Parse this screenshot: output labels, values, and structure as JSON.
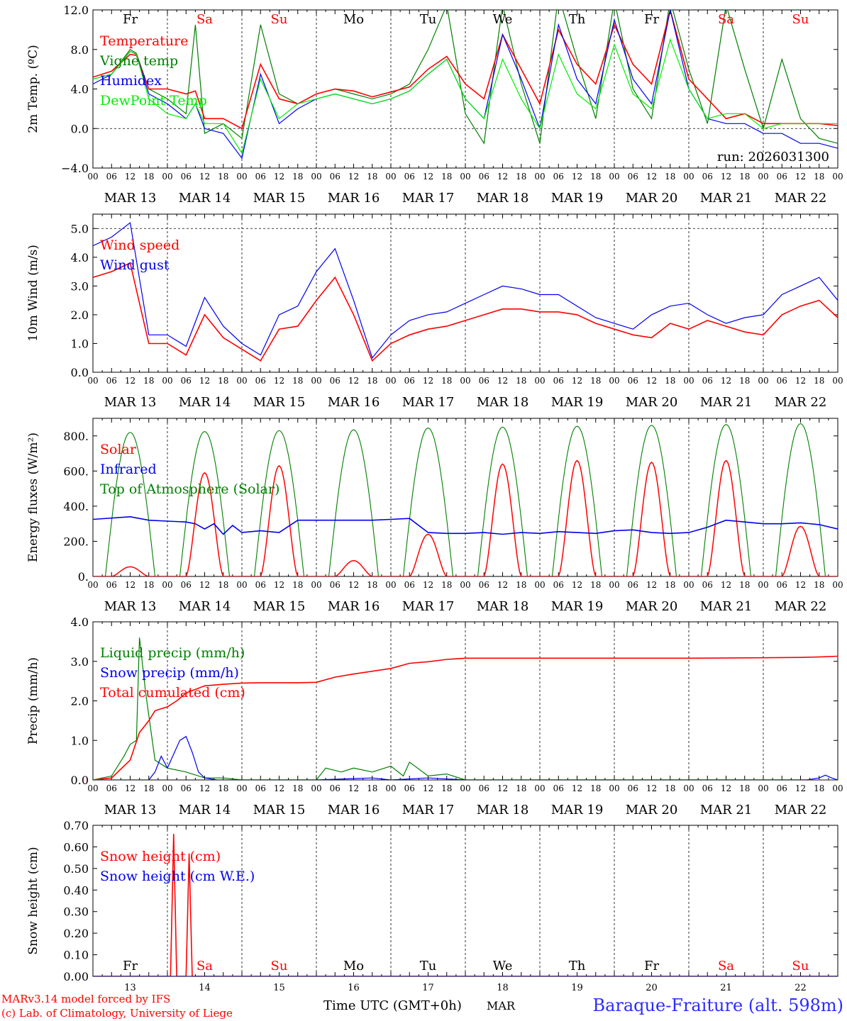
{
  "footer": {
    "credit_line1": "MARv3.14 model forced by IFS",
    "credit_line2": "(c) Lab. of Climatology, University of Liege",
    "xlabel": "Time UTC (GMT+0h)",
    "month": "MAR",
    "station": "Baraque-Fraiture (alt. 598m)"
  },
  "days": [
    "Fr",
    "Sa",
    "Su",
    "Mo",
    "Tu",
    "We",
    "Th",
    "Fr",
    "Sa",
    "Su"
  ],
  "day_colors": [
    "#000000",
    "#ff0000",
    "#ff0000",
    "#000000",
    "#000000",
    "#000000",
    "#000000",
    "#000000",
    "#ff0000",
    "#ff0000"
  ],
  "date_labels": [
    "MAR 13",
    "MAR 14",
    "MAR 15",
    "MAR 16",
    "MAR 17",
    "MAR 18",
    "MAR 19",
    "MAR 20",
    "MAR 21",
    "MAR 22"
  ],
  "day_numbers": [
    "13",
    "14",
    "15",
    "16",
    "17",
    "18",
    "19",
    "20",
    "21",
    "22"
  ],
  "hour_labels": [
    "00",
    "06",
    "12",
    "18"
  ],
  "end_hour_label": "00",
  "colors": {
    "red": "#ff0000",
    "green": "#007f00",
    "blue": "#0000ee",
    "lightgreen": "#00ee00"
  },
  "chart_data": [
    {
      "id": "temp",
      "type": "line",
      "ylabel": "2m Temp. (ºC)",
      "ylim": [
        -4,
        12
      ],
      "ticks": [
        -4,
        0,
        4,
        8,
        12
      ],
      "tick_labels": [
        "−4.0",
        "0.0",
        "4.0",
        "8.0",
        "12.0"
      ],
      "ref_lines": [
        0
      ],
      "show_days": true,
      "annotation": "run: 2026031300",
      "legend": [
        {
          "label": "Temperature",
          "color": "red"
        },
        {
          "label": "Vigne temp",
          "color": "green"
        },
        {
          "label": "Humidex",
          "color": "blue"
        },
        {
          "label": "DewPoint Temp",
          "color": "lightgreen"
        }
      ],
      "x_hours": [
        0,
        6,
        12,
        14,
        18,
        24,
        30,
        33,
        36,
        42,
        48,
        54,
        60,
        66,
        72,
        78,
        84,
        90,
        96,
        102,
        108,
        114,
        120,
        126,
        132,
        138,
        144,
        150,
        156,
        162,
        168,
        174,
        180,
        186,
        192,
        198,
        204,
        210,
        216,
        222,
        228,
        234,
        240
      ],
      "series": [
        {
          "name": "Vigne temp",
          "color": "green",
          "values": [
            5.0,
            5.5,
            8.0,
            7.6,
            4.0,
            3.0,
            1.5,
            10.5,
            -0.5,
            0.5,
            -1.0,
            10.5,
            3.5,
            2.5,
            3.5,
            4.0,
            3.5,
            3.0,
            3.5,
            4.5,
            8.0,
            12.5,
            1.5,
            -1.5,
            12.5,
            4.5,
            -1.5,
            13.5,
            7.0,
            1.0,
            13.0,
            4.0,
            1.0,
            13.0,
            6.0,
            0.5,
            12.5,
            6.0,
            0.0,
            7.0,
            1.0,
            -1.0,
            -1.5
          ]
        },
        {
          "name": "Temperature",
          "color": "red",
          "values": [
            5.2,
            5.8,
            7.5,
            7.4,
            4.0,
            4.0,
            3.5,
            3.8,
            1.0,
            1.0,
            0.0,
            6.5,
            3.0,
            2.5,
            3.5,
            4.0,
            3.8,
            3.2,
            3.7,
            4.2,
            6.0,
            7.3,
            4.5,
            3.0,
            9.5,
            6.0,
            2.5,
            10.0,
            6.5,
            4.5,
            10.5,
            6.5,
            4.5,
            12.0,
            5.0,
            3.0,
            1.0,
            1.5,
            0.5,
            0.5,
            0.5,
            0.5,
            0.3
          ]
        },
        {
          "name": "Humidex",
          "color": "blue",
          "values": [
            4.5,
            5.5,
            7.8,
            7.5,
            3.5,
            2.5,
            1.0,
            2.5,
            0.0,
            -0.5,
            -3.0,
            5.5,
            0.5,
            2.0,
            3.0,
            3.5,
            3.0,
            2.5,
            3.0,
            3.8,
            5.5,
            7.0,
            3.0,
            1.0,
            9.5,
            5.0,
            0.0,
            10.5,
            5.0,
            2.5,
            11.0,
            5.0,
            2.5,
            12.0,
            4.0,
            1.0,
            0.5,
            0.5,
            -0.5,
            -0.5,
            -1.5,
            -1.5,
            -2.0
          ]
        },
        {
          "name": "DewPoint Temp",
          "color": "lightgreen",
          "values": [
            5.0,
            5.5,
            7.8,
            7.5,
            3.0,
            1.5,
            1.0,
            2.5,
            0.5,
            0.5,
            -2.5,
            5.0,
            1.0,
            2.5,
            3.0,
            3.5,
            3.0,
            2.5,
            3.0,
            3.8,
            5.5,
            7.0,
            3.0,
            1.0,
            7.0,
            3.0,
            0.0,
            7.5,
            3.5,
            2.0,
            8.5,
            3.5,
            2.0,
            9.0,
            4.0,
            1.0,
            1.5,
            1.5,
            0.0,
            0.5,
            0.5,
            0.5,
            0.5
          ]
        }
      ]
    },
    {
      "id": "wind",
      "type": "line",
      "ylabel": "10m Wind (m/s)",
      "ylim": [
        0,
        5.5
      ],
      "ticks": [
        0,
        1,
        2,
        3,
        4,
        5
      ],
      "tick_labels": [
        "0.0",
        "1.0",
        "2.0",
        "3.0",
        "4.0",
        "5.0"
      ],
      "ref_lines": [
        5
      ],
      "show_days": false,
      "legend": [
        {
          "label": "Wind speed",
          "color": "red"
        },
        {
          "label": "Wind gust",
          "color": "blue"
        }
      ],
      "x_hours": [
        0,
        6,
        12,
        18,
        24,
        30,
        36,
        42,
        48,
        54,
        60,
        66,
        72,
        78,
        84,
        90,
        96,
        102,
        108,
        114,
        120,
        126,
        132,
        138,
        144,
        150,
        156,
        162,
        168,
        174,
        180,
        186,
        192,
        198,
        204,
        210,
        216,
        222,
        228,
        234,
        240
      ],
      "series": [
        {
          "name": "Wind speed",
          "color": "red",
          "values": [
            3.3,
            3.5,
            3.8,
            1.0,
            1.0,
            0.6,
            2.0,
            1.2,
            0.8,
            0.4,
            1.5,
            1.6,
            2.5,
            3.3,
            2.0,
            0.4,
            1.0,
            1.3,
            1.5,
            1.6,
            1.8,
            2.0,
            2.2,
            2.2,
            2.1,
            2.1,
            2.0,
            1.7,
            1.5,
            1.3,
            1.2,
            1.7,
            1.5,
            1.8,
            1.6,
            1.4,
            1.3,
            2.0,
            2.3,
            2.5,
            1.9
          ]
        },
        {
          "name": "Wind gust",
          "color": "blue",
          "values": [
            4.4,
            4.7,
            5.2,
            1.3,
            1.3,
            0.9,
            2.6,
            1.6,
            1.0,
            0.6,
            2.0,
            2.3,
            3.5,
            4.3,
            2.5,
            0.5,
            1.3,
            1.8,
            2.0,
            2.1,
            2.4,
            2.7,
            3.0,
            2.9,
            2.7,
            2.7,
            2.3,
            1.9,
            1.7,
            1.5,
            2.0,
            2.3,
            2.4,
            2.0,
            1.7,
            1.9,
            2.0,
            2.7,
            3.0,
            3.3,
            2.5
          ]
        }
      ]
    },
    {
      "id": "energy",
      "type": "line",
      "ylabel": "Energy fluxes (W/m²)",
      "ylim": [
        0,
        900
      ],
      "ticks": [
        0,
        200,
        400,
        600,
        800
      ],
      "tick_labels": [
        "0.",
        "200.",
        "400.",
        "600.",
        "800."
      ],
      "ref_lines": [],
      "show_days": false,
      "legend": [
        {
          "label": "Solar",
          "color": "red"
        },
        {
          "label": "Infrared",
          "color": "blue"
        },
        {
          "label": "Top of Atmosphere (Solar)",
          "color": "green"
        }
      ],
      "toa_peaks": [
        820,
        825,
        830,
        835,
        845,
        850,
        855,
        860,
        865,
        870
      ],
      "solar_peaks": [
        55,
        590,
        630,
        90,
        240,
        640,
        660,
        650,
        660,
        285
      ],
      "infrared": {
        "x_hours": [
          0,
          12,
          18,
          24,
          30,
          33,
          36,
          39,
          42,
          45,
          48,
          54,
          60,
          66,
          72,
          78,
          84,
          90,
          96,
          102,
          108,
          114,
          120,
          126,
          132,
          138,
          144,
          150,
          156,
          162,
          168,
          174,
          180,
          186,
          192,
          198,
          204,
          210,
          216,
          222,
          228,
          234,
          240
        ],
        "values": [
          325,
          340,
          320,
          315,
          310,
          300,
          270,
          300,
          240,
          290,
          250,
          260,
          250,
          320,
          320,
          320,
          320,
          320,
          325,
          330,
          250,
          245,
          245,
          250,
          240,
          250,
          245,
          255,
          250,
          245,
          260,
          265,
          250,
          245,
          250,
          280,
          320,
          310,
          300,
          300,
          305,
          295,
          270
        ]
      }
    },
    {
      "id": "precip",
      "type": "line",
      "ylabel": "Precip (mm/h)",
      "ylim": [
        0,
        4
      ],
      "ticks": [
        0,
        1,
        2,
        3,
        4
      ],
      "tick_labels": [
        "0.0",
        "1.0",
        "2.0",
        "3.0",
        "4.0"
      ],
      "ref_lines": [],
      "show_days": false,
      "legend": [
        {
          "label": "Liquid precip (mm/h)",
          "color": "green"
        },
        {
          "label": "Snow precip (mm/h)",
          "color": "blue"
        },
        {
          "label": "Total cumulated (cm)",
          "color": "red"
        }
      ],
      "series": [
        {
          "name": "Liquid precip (mm/h)",
          "color": "green",
          "x_hours": [
            0,
            6,
            10,
            12,
            14,
            15,
            17,
            20,
            24,
            30,
            36,
            42,
            48,
            72,
            75,
            80,
            84,
            90,
            96,
            100,
            102,
            108,
            114,
            120,
            240
          ],
          "values": [
            0,
            0.1,
            0.6,
            0.9,
            1.0,
            3.6,
            2.2,
            0.5,
            0.3,
            0.2,
            0.05,
            0.05,
            0,
            0,
            0.3,
            0.2,
            0.3,
            0.2,
            0.35,
            0.1,
            0.45,
            0.1,
            0.15,
            0,
            0
          ]
        },
        {
          "name": "Snow precip (mm/h)",
          "color": "blue",
          "x_hours": [
            0,
            18,
            20,
            22,
            24,
            28,
            30,
            32,
            34,
            36,
            40,
            48,
            72,
            90,
            96,
            108,
            120,
            230,
            234,
            236,
            238,
            240
          ],
          "values": [
            0,
            0,
            0.2,
            0.6,
            0.3,
            1.0,
            1.1,
            0.7,
            0.2,
            0.05,
            0,
            0,
            0,
            0.05,
            0,
            0.05,
            0,
            0,
            0.05,
            0.12,
            0.05,
            0
          ]
        },
        {
          "name": "Total cumulated (cm)",
          "color": "red",
          "x_hours": [
            0,
            6,
            12,
            15,
            18,
            20,
            24,
            27,
            30,
            36,
            42,
            48,
            54,
            60,
            66,
            72,
            78,
            84,
            90,
            96,
            102,
            108,
            114,
            120,
            144,
            168,
            192,
            216,
            228,
            234,
            240
          ],
          "values": [
            0,
            0.05,
            0.5,
            1.2,
            1.5,
            1.75,
            1.85,
            2.0,
            2.2,
            2.38,
            2.42,
            2.45,
            2.46,
            2.46,
            2.46,
            2.47,
            2.6,
            2.68,
            2.75,
            2.82,
            2.95,
            2.99,
            3.05,
            3.08,
            3.08,
            3.08,
            3.08,
            3.09,
            3.1,
            3.11,
            3.13
          ]
        }
      ]
    },
    {
      "id": "snow",
      "type": "line",
      "ylabel": "Snow height (cm)",
      "ylim": [
        0,
        0.7
      ],
      "ticks": [
        0,
        0.1,
        0.2,
        0.3,
        0.4,
        0.5,
        0.6,
        0.7
      ],
      "tick_labels": [
        "0.00",
        "0.10",
        "0.20",
        "0.30",
        "0.40",
        "0.50",
        "0.60",
        "0.70"
      ],
      "ref_lines": [],
      "show_days": true,
      "days_bottom": true,
      "legend": [
        {
          "label": "Snow height (cm)",
          "color": "red"
        },
        {
          "label": "Snow height (cm W.E.)",
          "color": "blue"
        }
      ],
      "series": [
        {
          "name": "Snow height (cm)",
          "color": "red",
          "x_hours": [
            0,
            25,
            26,
            27,
            30,
            31,
            32,
            240
          ],
          "values": [
            0,
            0,
            0.66,
            0,
            0,
            0.57,
            0,
            0
          ]
        },
        {
          "name": "Snow height (cm W.E.)",
          "color": "blue",
          "x_hours": [
            0,
            240
          ],
          "values": [
            0,
            0
          ]
        }
      ]
    }
  ]
}
